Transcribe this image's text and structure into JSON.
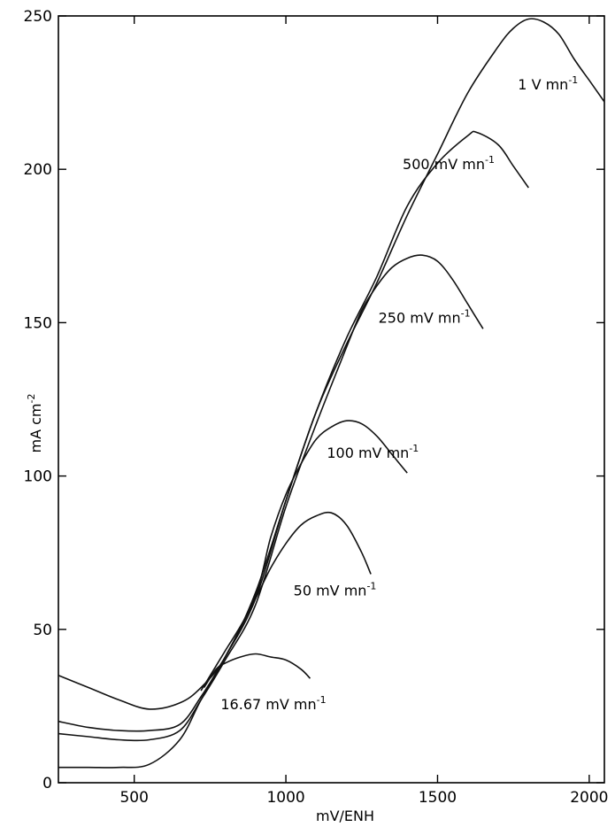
{
  "chart_data": {
    "type": "line",
    "xlabel": "mV/ENH",
    "ylabel_main": "mA cm",
    "ylabel_exp": "-2",
    "xlim": [
      250,
      2050
    ],
    "ylim": [
      0,
      250
    ],
    "x_ticks": [
      500,
      1000,
      1500,
      2000
    ],
    "y_ticks": [
      0,
      50,
      100,
      150,
      200,
      250
    ],
    "grid": false,
    "legend": "inline labels next to each curve",
    "series": [
      {
        "label_main": "1 V mn",
        "label_exp": "-1",
        "x": [
          250,
          350,
          450,
          550,
          650,
          720,
          800,
          900,
          1000,
          1100,
          1200,
          1300,
          1400,
          1500,
          1600,
          1700,
          1750,
          1800,
          1850,
          1900,
          1950,
          2000,
          2050
        ],
        "y": [
          35,
          31,
          27,
          24,
          26,
          31,
          41,
          62,
          92,
          121,
          143,
          163,
          185,
          205,
          225,
          240,
          246,
          249,
          248,
          244,
          236,
          229,
          222
        ]
      },
      {
        "label_main": "500 mV mn",
        "label_exp": "-1",
        "x": [
          250,
          350,
          450,
          550,
          650,
          720,
          800,
          900,
          1000,
          1100,
          1200,
          1300,
          1400,
          1500,
          1600,
          1630,
          1700,
          1750,
          1800
        ],
        "y": [
          20,
          18,
          17,
          17,
          19,
          28,
          41,
          60,
          92,
          121,
          145,
          165,
          188,
          202,
          211,
          212,
          208,
          201,
          194
        ]
      },
      {
        "label_main": "250 mV mn",
        "label_exp": "-1",
        "x": [
          250,
          350,
          450,
          550,
          650,
          720,
          800,
          900,
          1000,
          1100,
          1200,
          1250,
          1300,
          1350,
          1400,
          1450,
          1500,
          1550,
          1600,
          1650
        ],
        "y": [
          16,
          15,
          14,
          14,
          17,
          27,
          40,
          58,
          90,
          117,
          142,
          154,
          162,
          168,
          171,
          172,
          170,
          164,
          156,
          148
        ]
      },
      {
        "label_main": "100 mV mn",
        "label_exp": "-1",
        "x": [
          250,
          350,
          450,
          550,
          650,
          720,
          800,
          900,
          950,
          1000,
          1050,
          1100,
          1150,
          1200,
          1250,
          1300,
          1350,
          1400
        ],
        "y": [
          5,
          5,
          5,
          6,
          14,
          27,
          41,
          61,
          80,
          94,
          104,
          112,
          116,
          118,
          117,
          113,
          107,
          101
        ]
      },
      {
        "label_main": "50 mV mn",
        "label_exp": "-1",
        "x": [
          720,
          800,
          850,
          900,
          950,
          1000,
          1050,
          1100,
          1150,
          1200,
          1250,
          1280
        ],
        "y": [
          30,
          43,
          51,
          60,
          70,
          78,
          84,
          87,
          88,
          84,
          75,
          68
        ]
      },
      {
        "label_main": "16.67 mV mn",
        "label_exp": "-1",
        "x": [
          730,
          770,
          800,
          850,
          900,
          950,
          1000,
          1050,
          1080
        ],
        "y": [
          31,
          37,
          39,
          41,
          42,
          41,
          40,
          37,
          34
        ]
      }
    ]
  }
}
